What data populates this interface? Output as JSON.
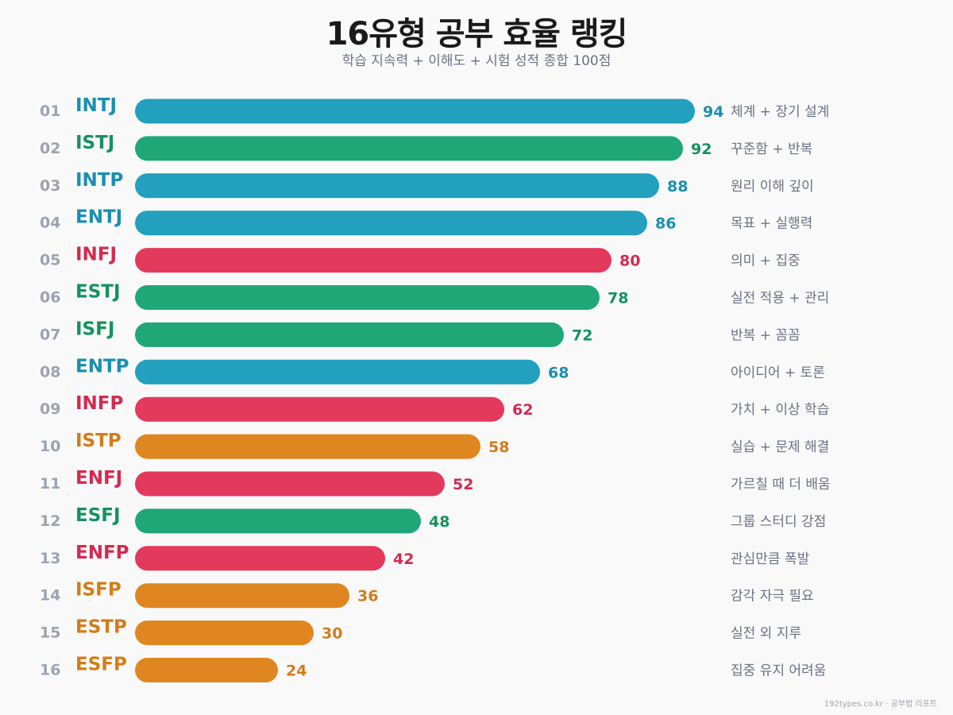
{
  "title": "16유형 공부 효율 랭킹",
  "subtitle": "학습 지속력 + 이해도 + 시험 성적 종합 100점",
  "footer": "192types.co.kr · 공부법 리포트",
  "colors": {
    "NT": {
      "bar": "#22a0bd",
      "text": "#1a8fb0"
    },
    "SJ": {
      "bar": "#20a777",
      "text": "#15925f"
    },
    "NF": {
      "bar": "#e3395c",
      "text": "#d42a50"
    },
    "SP": {
      "bar": "#e08620",
      "text": "#d27d18"
    },
    "rank": "#9ca3af",
    "desc": "#6b7280"
  },
  "chart_data": {
    "type": "bar",
    "orientation": "horizontal",
    "xlim": [
      0,
      100
    ],
    "grid": false,
    "ranks": [
      "01",
      "02",
      "03",
      "04",
      "05",
      "06",
      "07",
      "08",
      "09",
      "10",
      "11",
      "12",
      "13",
      "14",
      "15",
      "16"
    ],
    "categories": [
      "INTJ",
      "ISTJ",
      "INTP",
      "ENTJ",
      "INFJ",
      "ESTJ",
      "ISFJ",
      "ENTP",
      "INFP",
      "ISTP",
      "ENFJ",
      "ESFJ",
      "ENFP",
      "ISFP",
      "ESTP",
      "ESFP"
    ],
    "groups": [
      "NT",
      "SJ",
      "NT",
      "NT",
      "NF",
      "SJ",
      "SJ",
      "NT",
      "NF",
      "SP",
      "NF",
      "SJ",
      "NF",
      "SP",
      "SP",
      "SP"
    ],
    "values": [
      94,
      92,
      88,
      86,
      80,
      78,
      72,
      68,
      62,
      58,
      52,
      48,
      42,
      36,
      30,
      24
    ],
    "descriptions": [
      "체계 + 장기 설계",
      "꾸준함 + 반복",
      "원리 이해 깊이",
      "목표 + 실행력",
      "의미 + 집중",
      "실전 적용 + 관리",
      "반복 + 꼼꼼",
      "아이디어 + 토론",
      "가치 + 이상 학습",
      "실습 + 문제 해결",
      "가르칠 때 더 배움",
      "그룹 스터디 강점",
      "관심만큼 폭발",
      "감각 자극 필요",
      "실전 외 지루",
      "집중 유지 어려움"
    ]
  }
}
